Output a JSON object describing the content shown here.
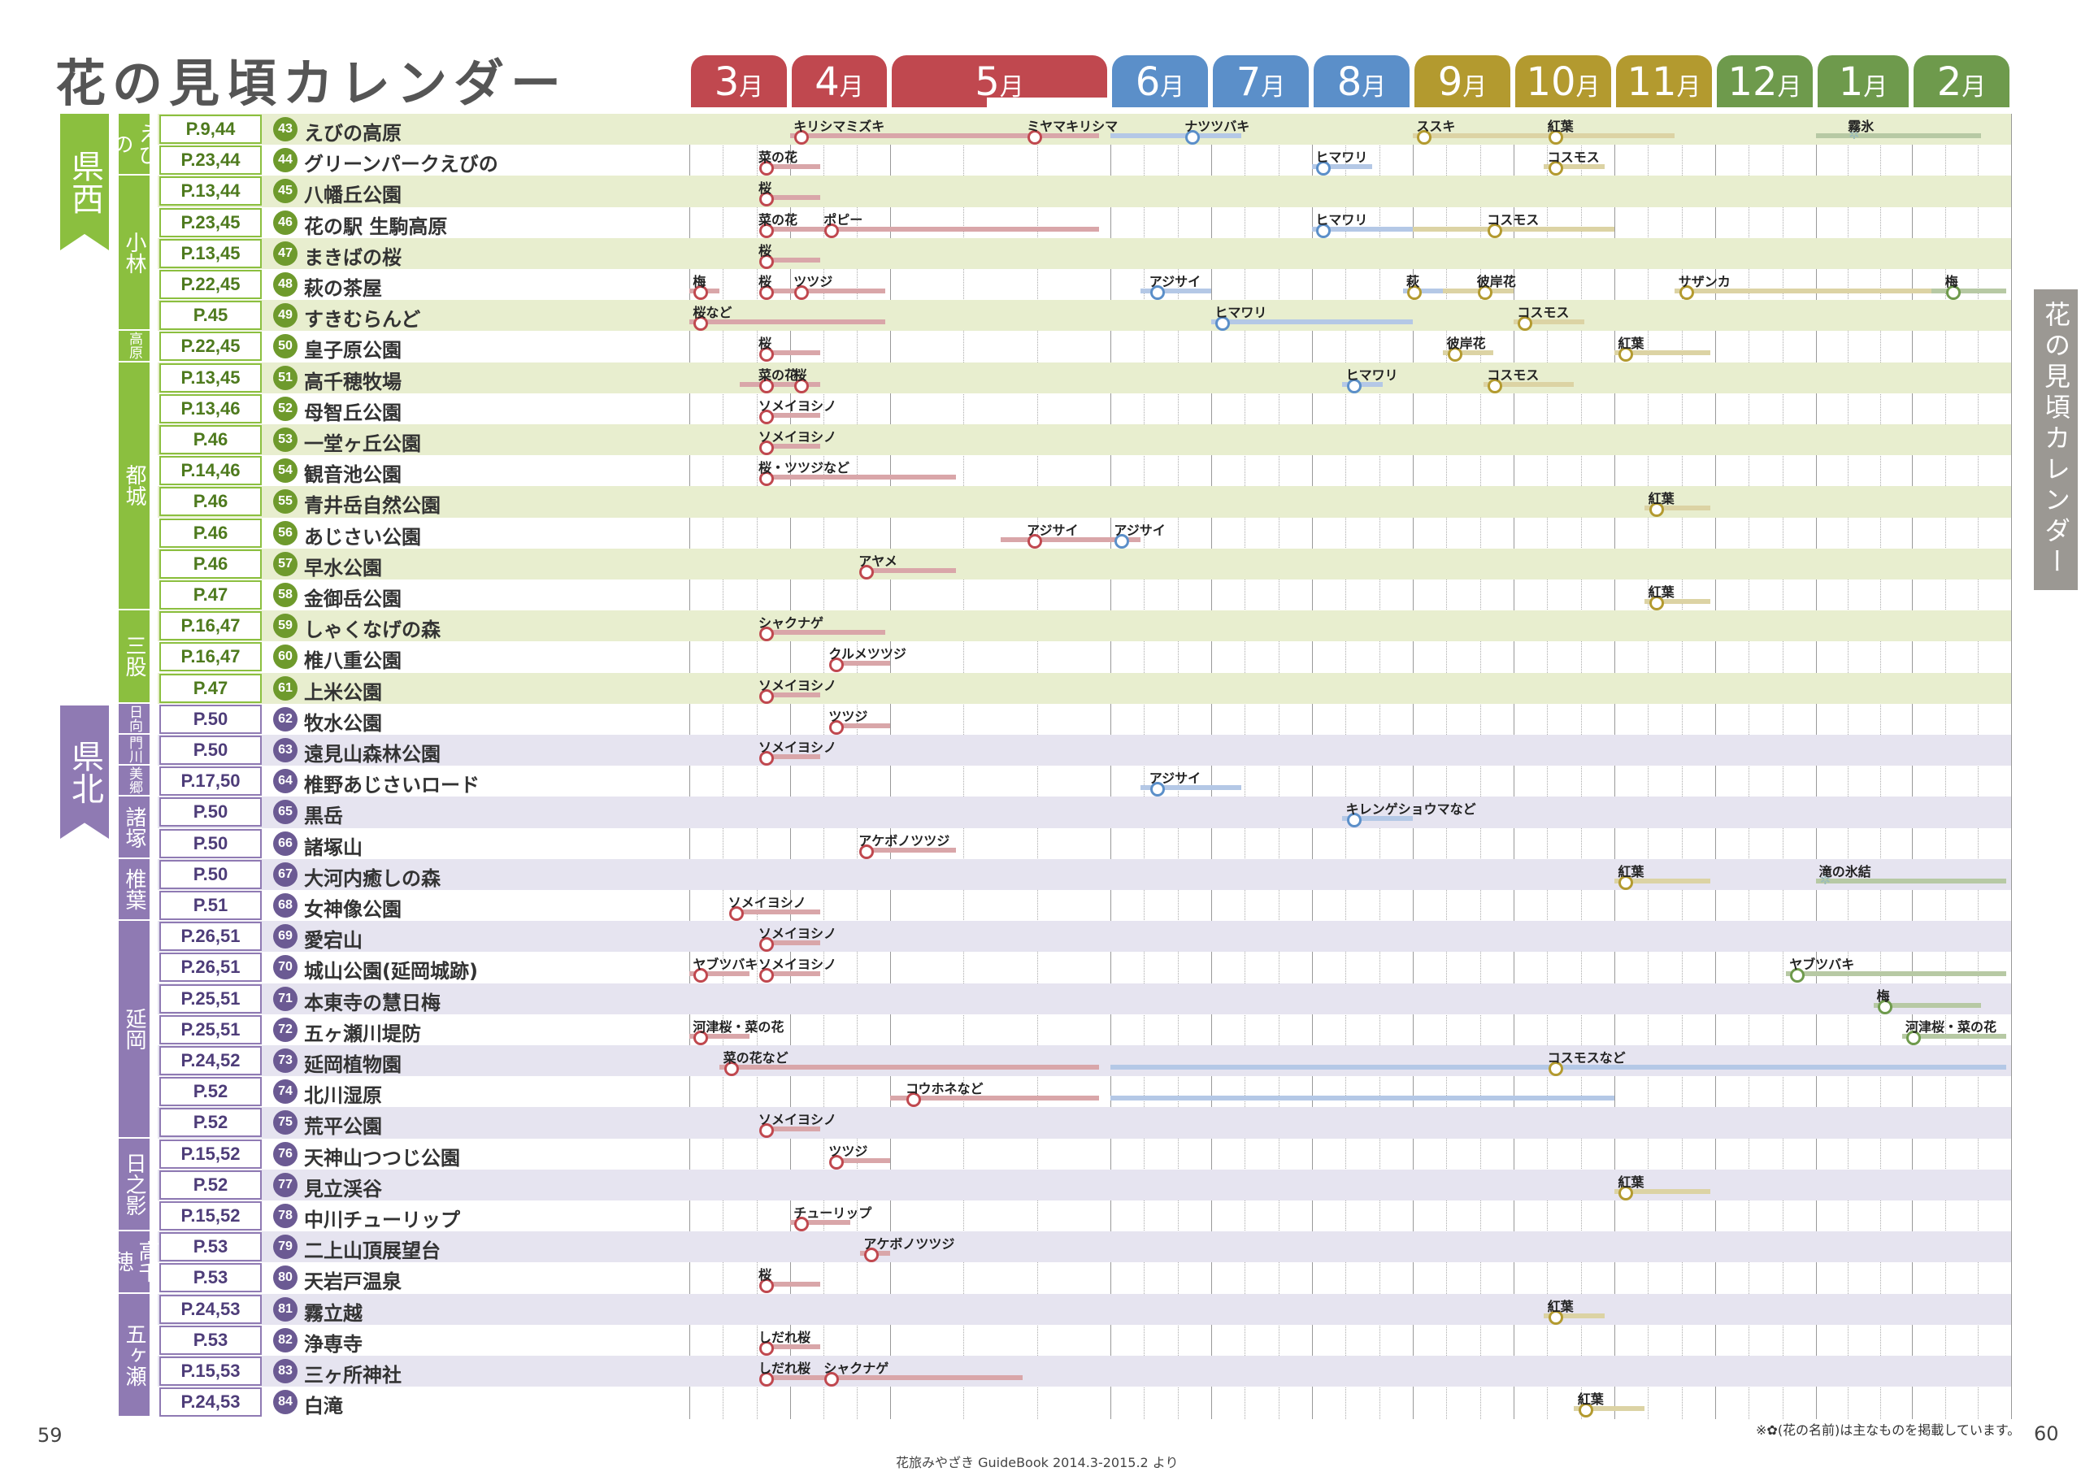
{
  "title": "花の見頃カレンダー",
  "side_tab": "花の見頃カレンダー",
  "page_left": "59",
  "page_right": "60",
  "note": "※✿(花の名前)は主なものを掲載しています。",
  "credit": "花旅みやざき GuideBook 2014.3-2015.2 より",
  "months": [
    {
      "label": "3",
      "unit": "月",
      "color": "#c0484f"
    },
    {
      "label": "4",
      "unit": "月",
      "color": "#c0484f"
    },
    {
      "label": "5",
      "unit": "月",
      "color": "#c0484f"
    },
    {
      "label": "6",
      "unit": "月",
      "color": "#5b8fc9"
    },
    {
      "label": "7",
      "unit": "月",
      "color": "#5b8fc9"
    },
    {
      "label": "8",
      "unit": "月",
      "color": "#5b8fc9"
    },
    {
      "label": "9",
      "unit": "月",
      "color": "#b39a2f"
    },
    {
      "label": "10",
      "unit": "月",
      "color": "#b39a2f"
    },
    {
      "label": "11",
      "unit": "月",
      "color": "#b39a2f"
    },
    {
      "label": "12",
      "unit": "月",
      "color": "#6e9a4c"
    },
    {
      "label": "1",
      "unit": "月",
      "color": "#6e9a4c"
    },
    {
      "label": "2",
      "unit": "月",
      "color": "#6e9a4c"
    }
  ],
  "regions": [
    {
      "label": "県西",
      "color": "#8bbf3f"
    },
    {
      "label": "県北",
      "color": "#8f7ab3"
    }
  ],
  "areas": [
    {
      "label": "えびの",
      "first": 0,
      "last": 1,
      "region": 0
    },
    {
      "label": "小林",
      "first": 2,
      "last": 6,
      "region": 0
    },
    {
      "label": "高原",
      "first": 7,
      "last": 7,
      "region": 0
    },
    {
      "label": "都城",
      "first": 8,
      "last": 15,
      "region": 0
    },
    {
      "label": "三股",
      "first": 16,
      "last": 18,
      "region": 0
    },
    {
      "label": "日向",
      "first": 19,
      "last": 19,
      "region": 1
    },
    {
      "label": "門川",
      "first": 20,
      "last": 20,
      "region": 1
    },
    {
      "label": "美郷",
      "first": 21,
      "last": 21,
      "region": 1
    },
    {
      "label": "諸塚",
      "first": 22,
      "last": 23,
      "region": 1
    },
    {
      "label": "椎葉",
      "first": 24,
      "last": 25,
      "region": 1
    },
    {
      "label": "延岡",
      "first": 26,
      "last": 32,
      "region": 1
    },
    {
      "label": "日之影",
      "first": 33,
      "last": 35,
      "region": 1
    },
    {
      "label": "高千穂",
      "first": 36,
      "last": 37,
      "region": 1
    },
    {
      "label": "五ヶ瀬",
      "first": 38,
      "last": 41,
      "region": 1
    }
  ],
  "spots": [
    {
      "page": "P.9,44",
      "num": "43",
      "name": "えびの高原",
      "blooms": [
        {
          "label": "キリシマミズキ",
          "start": 1.0,
          "end": 2.5,
          "dot": 1.1
        },
        {
          "label": "ミヤマキリシマ",
          "start": 2.2,
          "end": 2.95,
          "dot": 2.65
        },
        {
          "label": "ナツツバキ",
          "start": 3.0,
          "end": 4.3,
          "dot": 3.8
        },
        {
          "label": "ススキ",
          "start": 6.0,
          "end": 7.5,
          "dot": 6.1
        },
        {
          "label": "紅葉",
          "start": 7.3,
          "end": 8.6,
          "dot": 7.4
        },
        {
          "label": "霧氷",
          "start": 10.0,
          "end": 11.7,
          "dot": 10.4,
          "star": true
        }
      ]
    },
    {
      "page": "P.23,44",
      "num": "44",
      "name": "グリーンパークえびの",
      "blooms": [
        {
          "label": "菜の花",
          "start": 0.7,
          "end": 1.3,
          "dot": 0.75
        },
        {
          "label": "ヒマワリ",
          "start": 5.0,
          "end": 5.6,
          "dot": 5.1
        },
        {
          "label": "コスモス",
          "start": 7.3,
          "end": 7.9,
          "dot": 7.4
        }
      ]
    },
    {
      "page": "P.13,44",
      "num": "45",
      "name": "八幡丘公園",
      "blooms": [
        {
          "label": "桜",
          "start": 0.7,
          "end": 1.3,
          "dot": 0.75
        }
      ]
    },
    {
      "page": "P.23,45",
      "num": "46",
      "name": "花の駅 生駒高原",
      "blooms": [
        {
          "label": "菜の花",
          "start": 0.7,
          "end": 1.3,
          "dot": 0.75
        },
        {
          "label": "ポピー",
          "start": 1.3,
          "end": 2.95,
          "dot": 1.4
        },
        {
          "label": "ヒマワリ",
          "start": 5.0,
          "end": 6.0,
          "dot": 5.1
        },
        {
          "label": "コスモス",
          "start": 6.0,
          "end": 8.0,
          "dot": 6.8
        }
      ]
    },
    {
      "page": "P.13,45",
      "num": "47",
      "name": "まきばの桜",
      "blooms": [
        {
          "label": "桜",
          "start": 0.7,
          "end": 1.3,
          "dot": 0.75
        }
      ]
    },
    {
      "page": "P.22,45",
      "num": "48",
      "name": "萩の茶屋",
      "blooms": [
        {
          "label": "梅",
          "start": 0.0,
          "end": 0.3,
          "dot": 0.1
        },
        {
          "label": "桜",
          "start": 0.7,
          "end": 1.0,
          "dot": 0.75
        },
        {
          "label": "ツツジ",
          "start": 1.0,
          "end": 1.95,
          "dot": 1.1
        },
        {
          "label": "アジサイ",
          "start": 3.3,
          "end": 4.0,
          "dot": 3.45
        },
        {
          "label": "萩",
          "start": 5.9,
          "end": 6.3,
          "dot": 6.0
        },
        {
          "label": "彼岸花",
          "start": 6.3,
          "end": 7.0,
          "dot": 6.7
        },
        {
          "label": "サザンカ",
          "start": 8.6,
          "end": 11.95,
          "dot": 8.7
        },
        {
          "label": "梅",
          "start": 11.2,
          "end": 11.95,
          "dot": 11.4
        }
      ]
    },
    {
      "page": "P.45",
      "num": "49",
      "name": "すきむらんど",
      "blooms": [
        {
          "label": "桜など",
          "start": 0.0,
          "end": 1.95,
          "dot": 0.1
        },
        {
          "label": "ヒマワリ",
          "start": 4.0,
          "end": 6.0,
          "dot": 4.1
        },
        {
          "label": "コスモス",
          "start": 7.0,
          "end": 7.7,
          "dot": 7.1
        }
      ]
    },
    {
      "page": "P.22,45",
      "num": "50",
      "name": "皇子原公園",
      "blooms": [
        {
          "label": "桜",
          "start": 0.7,
          "end": 1.3,
          "dot": 0.75
        },
        {
          "label": "彼岸花",
          "start": 6.3,
          "end": 6.8,
          "dot": 6.4
        },
        {
          "label": "紅葉",
          "start": 8.0,
          "end": 8.95,
          "dot": 8.1
        }
      ]
    },
    {
      "page": "P.13,45",
      "num": "51",
      "name": "高千穂牧場",
      "blooms": [
        {
          "label": "菜の花",
          "start": 0.5,
          "end": 1.0,
          "dot": 0.75
        },
        {
          "label": "桜",
          "start": 1.0,
          "end": 1.3,
          "dot": 1.1
        },
        {
          "label": "ヒマワリ",
          "start": 5.3,
          "end": 5.7,
          "dot": 5.4
        },
        {
          "label": "コスモス",
          "start": 6.7,
          "end": 7.6,
          "dot": 6.8
        }
      ]
    },
    {
      "page": "P.13,46",
      "num": "52",
      "name": "母智丘公園",
      "blooms": [
        {
          "label": "ソメイヨシノ",
          "start": 0.7,
          "end": 1.3,
          "dot": 0.75
        }
      ]
    },
    {
      "page": "P.46",
      "num": "53",
      "name": "一堂ヶ丘公園",
      "blooms": [
        {
          "label": "ソメイヨシノ",
          "start": 0.7,
          "end": 1.3,
          "dot": 0.75
        }
      ]
    },
    {
      "page": "P.14,46",
      "num": "54",
      "name": "観音池公園",
      "blooms": [
        {
          "label": "桜・ツツジなど",
          "start": 0.7,
          "end": 2.3,
          "dot": 0.75
        }
      ]
    },
    {
      "page": "P.46",
      "num": "55",
      "name": "青井岳自然公園",
      "blooms": [
        {
          "label": "紅葉",
          "start": 8.3,
          "end": 8.95,
          "dot": 8.4
        }
      ]
    },
    {
      "page": "P.46",
      "num": "56",
      "name": "あじさい公園",
      "blooms": [
        {
          "label": "アジサイ",
          "start": 2.5,
          "end": 2.95,
          "dot": 2.65
        },
        {
          "label": "アジサイ",
          "start": 2.95,
          "end": 3.3,
          "dot": 3.1
        }
      ]
    },
    {
      "page": "P.46",
      "num": "57",
      "name": "早水公園",
      "blooms": [
        {
          "label": "アヤメ",
          "start": 1.7,
          "end": 2.3,
          "dot": 1.75
        }
      ]
    },
    {
      "page": "P.47",
      "num": "58",
      "name": "金御岳公園",
      "blooms": [
        {
          "label": "紅葉",
          "start": 8.3,
          "end": 8.95,
          "dot": 8.4
        }
      ]
    },
    {
      "page": "P.16,47",
      "num": "59",
      "name": "しゃくなげの森",
      "blooms": [
        {
          "label": "シャクナゲ",
          "start": 0.7,
          "end": 1.95,
          "dot": 0.75
        }
      ]
    },
    {
      "page": "P.16,47",
      "num": "60",
      "name": "椎八重公園",
      "blooms": [
        {
          "label": "クルメツツジ",
          "start": 1.4,
          "end": 2.0,
          "dot": 1.45
        }
      ]
    },
    {
      "page": "P.47",
      "num": "61",
      "name": "上米公園",
      "blooms": [
        {
          "label": "ソメイヨシノ",
          "start": 0.7,
          "end": 1.3,
          "dot": 0.75
        }
      ]
    },
    {
      "page": "P.50",
      "num": "62",
      "name": "牧水公園",
      "blooms": [
        {
          "label": "ツツジ",
          "start": 1.4,
          "end": 2.0,
          "dot": 1.45
        }
      ]
    },
    {
      "page": "P.50",
      "num": "63",
      "name": "遠見山森林公園",
      "blooms": [
        {
          "label": "ソメイヨシノ",
          "start": 0.7,
          "end": 1.3,
          "dot": 0.75
        }
      ]
    },
    {
      "page": "P.17,50",
      "num": "64",
      "name": "椎野あじさいロード",
      "blooms": [
        {
          "label": "アジサイ",
          "start": 3.3,
          "end": 4.3,
          "dot": 3.45
        }
      ]
    },
    {
      "page": "P.50",
      "num": "65",
      "name": "黒岳",
      "blooms": [
        {
          "label": "キレンゲショウマなど",
          "start": 5.3,
          "end": 6.0,
          "dot": 5.4
        }
      ]
    },
    {
      "page": "P.50",
      "num": "66",
      "name": "諸塚山",
      "blooms": [
        {
          "label": "アケボノツツジ",
          "start": 1.7,
          "end": 2.3,
          "dot": 1.75
        }
      ]
    },
    {
      "page": "P.50",
      "num": "67",
      "name": "大河内癒しの森",
      "blooms": [
        {
          "label": "紅葉",
          "start": 8.0,
          "end": 8.95,
          "dot": 8.1
        },
        {
          "label": "滝の氷結",
          "start": 10.0,
          "end": 11.95,
          "dot": 10.1,
          "star": true
        }
      ]
    },
    {
      "page": "P.51",
      "num": "68",
      "name": "女神像公園",
      "blooms": [
        {
          "label": "ソメイヨシノ",
          "start": 0.4,
          "end": 1.3,
          "dot": 0.45
        }
      ]
    },
    {
      "page": "P.26,51",
      "num": "69",
      "name": "愛宕山",
      "blooms": [
        {
          "label": "ソメイヨシノ",
          "start": 0.7,
          "end": 1.3,
          "dot": 0.75
        }
      ]
    },
    {
      "page": "P.26,51",
      "num": "70",
      "name": "城山公園(延岡城跡)",
      "blooms": [
        {
          "label": "ヤブツバキ",
          "start": 0.0,
          "end": 0.6,
          "dot": 0.1
        },
        {
          "label": "ソメイヨシノ",
          "start": 0.7,
          "end": 1.3,
          "dot": 0.75
        },
        {
          "label": "ヤブツバキ",
          "start": 9.7,
          "end": 11.95,
          "dot": 9.8
        }
      ]
    },
    {
      "page": "P.25,51",
      "num": "71",
      "name": "本東寺の慧日梅",
      "blooms": [
        {
          "label": "梅",
          "start": 10.6,
          "end": 11.7,
          "dot": 10.7
        }
      ]
    },
    {
      "page": "P.25,51",
      "num": "72",
      "name": "五ヶ瀬川堤防",
      "blooms": [
        {
          "label": "河津桜・菜の花",
          "start": 0.0,
          "end": 0.6,
          "dot": 0.1
        },
        {
          "label": "河津桜・菜の花",
          "start": 10.9,
          "end": 11.95,
          "dot": 11.0
        }
      ]
    },
    {
      "page": "P.24,52",
      "num": "73",
      "name": "延岡植物園",
      "blooms": [
        {
          "label": "菜の花など",
          "start": 0.3,
          "end": 2.95,
          "dot": 0.4
        },
        {
          "label": "コスモスなど",
          "start": 3.0,
          "end": 11.95,
          "dot": 7.4
        }
      ]
    },
    {
      "page": "P.52",
      "num": "74",
      "name": "北川湿原",
      "blooms": [
        {
          "label": "コウホネなど",
          "start": 2.0,
          "end": 2.95,
          "dot": 2.1
        },
        {
          "label": "",
          "start": 3.0,
          "end": 8.0,
          "dot": -1
        }
      ]
    },
    {
      "page": "P.52",
      "num": "75",
      "name": "荒平公園",
      "blooms": [
        {
          "label": "ソメイヨシノ",
          "start": 0.7,
          "end": 1.3,
          "dot": 0.75
        }
      ]
    },
    {
      "page": "P.15,52",
      "num": "76",
      "name": "天神山つつじ公園",
      "blooms": [
        {
          "label": "ツツジ",
          "start": 1.4,
          "end": 2.0,
          "dot": 1.45
        }
      ]
    },
    {
      "page": "P.52",
      "num": "77",
      "name": "見立渓谷",
      "blooms": [
        {
          "label": "紅葉",
          "start": 8.0,
          "end": 8.95,
          "dot": 8.1
        }
      ]
    },
    {
      "page": "P.15,52",
      "num": "78",
      "name": "中川チューリップ",
      "blooms": [
        {
          "label": "チューリップ",
          "start": 1.0,
          "end": 1.6,
          "dot": 1.1
        }
      ]
    },
    {
      "page": "P.53",
      "num": "79",
      "name": "二上山頂展望台",
      "blooms": [
        {
          "label": "アケボノツツジ",
          "start": 1.7,
          "end": 2.0,
          "dot": 1.8
        }
      ]
    },
    {
      "page": "P.53",
      "num": "80",
      "name": "天岩戸温泉",
      "blooms": [
        {
          "label": "桜",
          "start": 0.7,
          "end": 1.3,
          "dot": 0.75
        }
      ]
    },
    {
      "page": "P.24,53",
      "num": "81",
      "name": "霧立越",
      "blooms": [
        {
          "label": "紅葉",
          "start": 7.3,
          "end": 7.9,
          "dot": 7.4
        }
      ]
    },
    {
      "page": "P.53",
      "num": "82",
      "name": "浄専寺",
      "blooms": [
        {
          "label": "しだれ桜",
          "start": 0.7,
          "end": 1.3,
          "dot": 0.75
        }
      ]
    },
    {
      "page": "P.15,53",
      "num": "83",
      "name": "三ヶ所神社",
      "blooms": [
        {
          "label": "しだれ桜",
          "start": 0.7,
          "end": 1.3,
          "dot": 0.75
        },
        {
          "label": "シャクナゲ",
          "start": 1.3,
          "end": 2.6,
          "dot": 1.4
        }
      ]
    },
    {
      "page": "P.24,53",
      "num": "84",
      "name": "白滝",
      "blooms": [
        {
          "label": "紅葉",
          "start": 7.6,
          "end": 8.3,
          "dot": 7.7
        }
      ]
    }
  ]
}
